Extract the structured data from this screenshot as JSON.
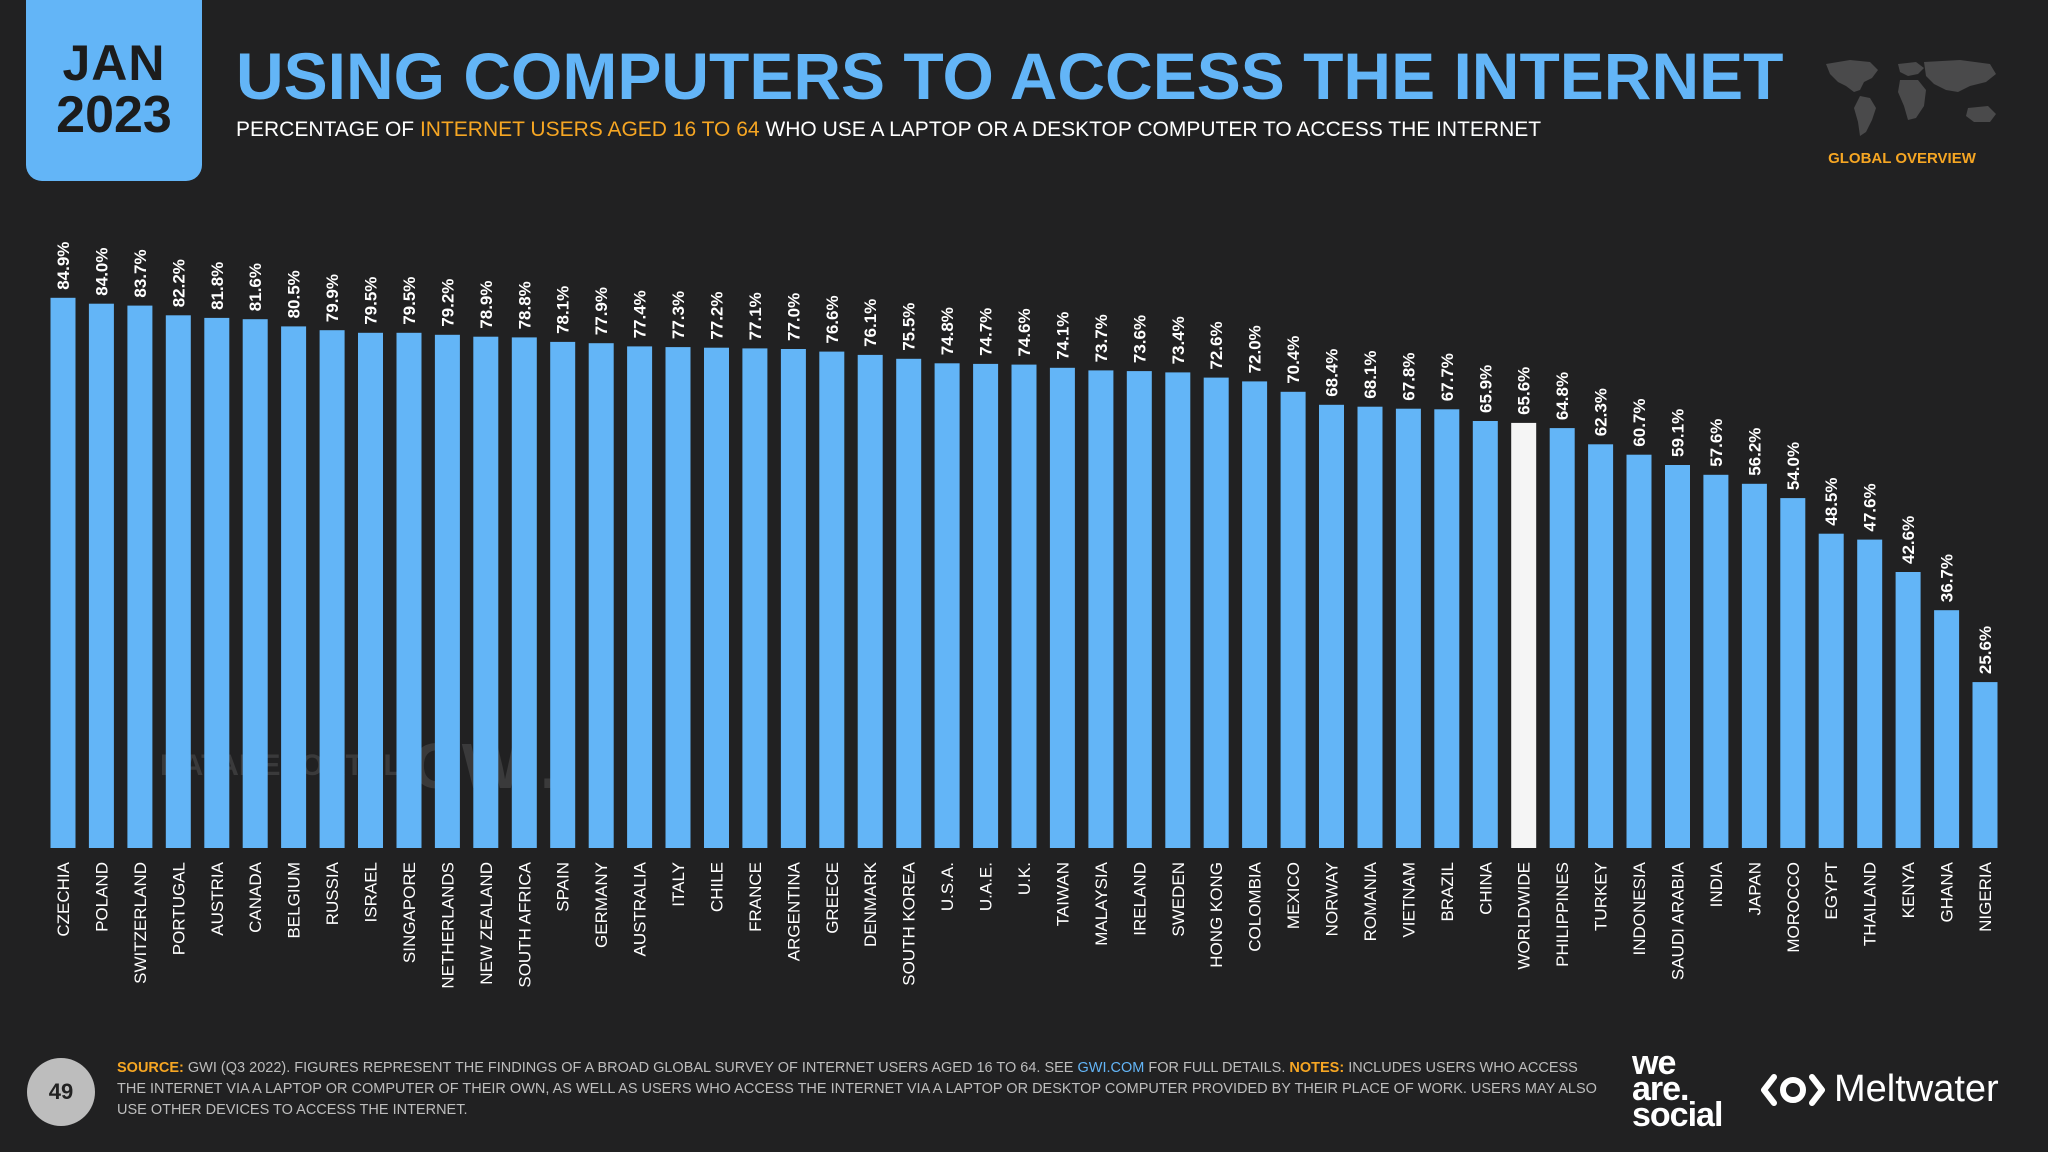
{
  "header": {
    "month": "JAN",
    "year": "2023",
    "title": "USING COMPUTERS TO ACCESS THE INTERNET",
    "subtitle_before": "PERCENTAGE OF ",
    "subtitle_highlight": "INTERNET USERS AGED 16 TO 64",
    "subtitle_after": " WHO USE A LAPTOP OR A DESKTOP COMPUTER TO ACCESS THE INTERNET",
    "overview_label": "GLOBAL OVERVIEW"
  },
  "colors": {
    "accent": "#63b5f7",
    "highlight": "#f6a623",
    "background": "#212122",
    "bar": "#63b5f7",
    "bar_worldwide": "#f5f5f5"
  },
  "watermarks": {
    "datareportal": "DATAREPORTAL",
    "gwi": "GWI."
  },
  "chart_data": {
    "type": "bar",
    "title": "USING COMPUTERS TO ACCESS THE INTERNET",
    "xlabel": "",
    "ylabel": "",
    "ylim": [
      0,
      100
    ],
    "grid": false,
    "highlight_category": "WORLDWIDE",
    "categories": [
      "CZECHIA",
      "POLAND",
      "SWITZERLAND",
      "PORTUGAL",
      "AUSTRIA",
      "CANADA",
      "BELGIUM",
      "RUSSIA",
      "ISRAEL",
      "SINGAPORE",
      "NETHERLANDS",
      "NEW ZEALAND",
      "SOUTH AFRICA",
      "SPAIN",
      "GERMANY",
      "AUSTRALIA",
      "ITALY",
      "CHILE",
      "FRANCE",
      "ARGENTINA",
      "GREECE",
      "DENMARK",
      "SOUTH KOREA",
      "U.S.A.",
      "U.A.E.",
      "U.K.",
      "TAIWAN",
      "MALAYSIA",
      "IRELAND",
      "SWEDEN",
      "HONG KONG",
      "COLOMBIA",
      "MEXICO",
      "NORWAY",
      "ROMANIA",
      "VIETNAM",
      "BRAZIL",
      "CHINA",
      "WORLDWIDE",
      "PHILIPPINES",
      "TURKEY",
      "INDONESIA",
      "SAUDI ARABIA",
      "INDIA",
      "JAPAN",
      "MOROCCO",
      "EGYPT",
      "THAILAND",
      "KENYA",
      "GHANA",
      "NIGERIA"
    ],
    "values": [
      84.9,
      84.0,
      83.7,
      82.2,
      81.8,
      81.6,
      80.5,
      79.9,
      79.5,
      79.5,
      79.2,
      78.9,
      78.8,
      78.1,
      77.9,
      77.4,
      77.3,
      77.2,
      77.1,
      77.0,
      76.6,
      76.1,
      75.5,
      74.8,
      74.7,
      74.6,
      74.1,
      73.7,
      73.6,
      73.4,
      72.6,
      72.0,
      70.4,
      68.4,
      68.1,
      67.8,
      67.7,
      65.9,
      65.6,
      64.8,
      62.3,
      60.7,
      59.1,
      57.6,
      56.2,
      54.0,
      48.5,
      47.6,
      42.6,
      36.7,
      25.6
    ],
    "value_labels": [
      "84.9%",
      "84.0%",
      "83.7%",
      "82.2%",
      "81.8%",
      "81.6%",
      "80.5%",
      "79.9%",
      "79.5%",
      "79.5%",
      "79.2%",
      "78.9%",
      "78.8%",
      "78.1%",
      "77.9%",
      "77.4%",
      "77.3%",
      "77.2%",
      "77.1%",
      "77.0%",
      "76.6%",
      "76.1%",
      "75.5%",
      "74.8%",
      "74.7%",
      "74.6%",
      "74.1%",
      "73.7%",
      "73.6%",
      "73.4%",
      "72.6%",
      "72.0%",
      "70.4%",
      "68.4%",
      "68.1%",
      "67.8%",
      "67.7%",
      "65.9%",
      "65.6%",
      "64.8%",
      "62.3%",
      "60.7%",
      "59.1%",
      "57.6%",
      "56.2%",
      "54.0%",
      "48.5%",
      "47.6%",
      "42.6%",
      "36.7%",
      "25.6%"
    ]
  },
  "footer": {
    "page_number": "49",
    "source_label": "SOURCE:",
    "source_text_1": " GWI (Q3 2022). FIGURES REPRESENT THE FINDINGS OF A BROAD GLOBAL SURVEY OF INTERNET USERS AGED 16 TO 64. SEE ",
    "source_link": "GWI.COM",
    "source_text_2": " FOR FULL DETAILS. ",
    "notes_label": "NOTES:",
    "notes_text": " INCLUDES USERS WHO ACCESS THE INTERNET VIA A LAPTOP OR COMPUTER OF THEIR OWN, AS WELL AS USERS WHO ACCESS THE INTERNET VIA A LAPTOP OR DESKTOP COMPUTER PROVIDED BY THEIR PLACE OF WORK. USERS MAY ALSO USE OTHER DEVICES TO ACCESS THE INTERNET.",
    "logo_was_line1": "we",
    "logo_was_line2": "are.",
    "logo_was_line3": "social",
    "logo_meltwater": "Meltwater"
  }
}
